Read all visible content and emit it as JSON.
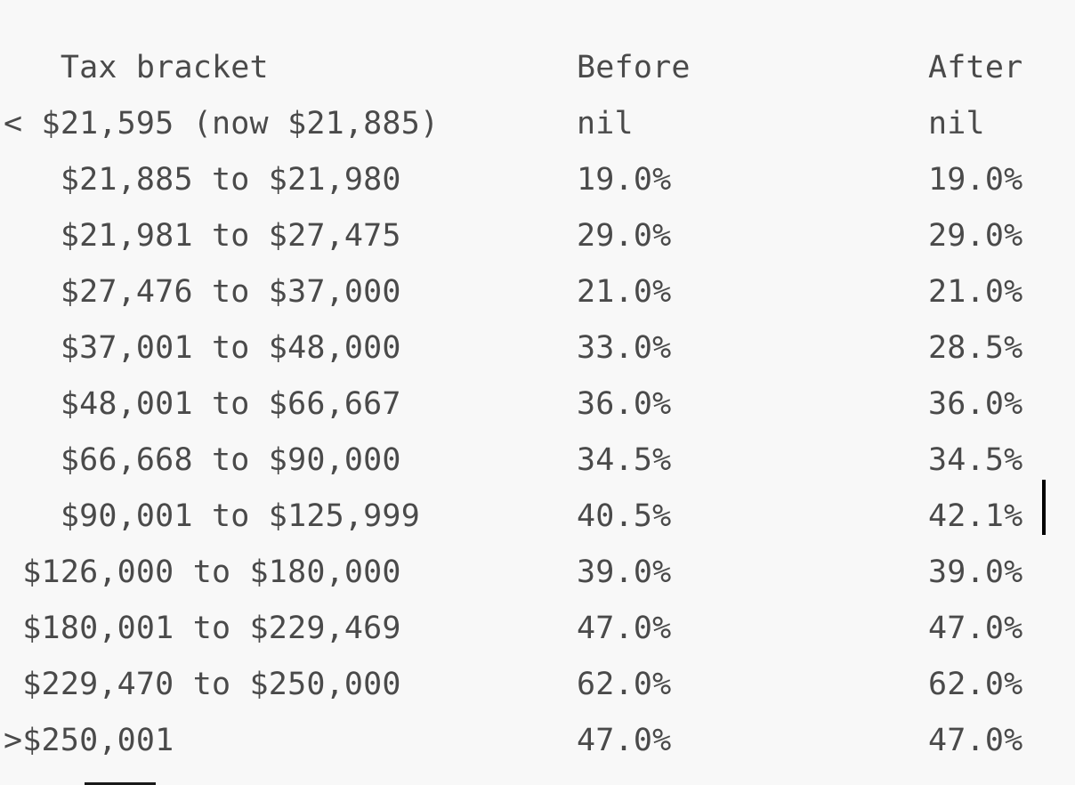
{
  "page": {
    "background_color": "#f8f8f8",
    "text_color": "#4a4a4a"
  },
  "table": {
    "header": {
      "bracket": "   Tax bracket",
      "before": "Before",
      "after": "After"
    },
    "rows": [
      {
        "bracket": "< $21,595 (now $21,885)",
        "before": "nil",
        "after": "nil"
      },
      {
        "bracket": "   $21,885 to $21,980",
        "before": "19.0%",
        "after": "19.0%"
      },
      {
        "bracket": "   $21,981 to $27,475",
        "before": "29.0%",
        "after": "29.0%"
      },
      {
        "bracket": "   $27,476 to $37,000",
        "before": "21.0%",
        "after": "21.0%"
      },
      {
        "bracket": "   $37,001 to $48,000",
        "before": "33.0%",
        "after": "28.5%"
      },
      {
        "bracket": "   $48,001 to $66,667",
        "before": "36.0%",
        "after": "36.0%"
      },
      {
        "bracket": "   $66,668 to $90,000",
        "before": "34.5%",
        "after": "34.5%"
      },
      {
        "bracket": "   $90,001 to $125,999",
        "before": "40.5%",
        "after": "42.1%"
      },
      {
        "bracket": " $126,000 to $180,000",
        "before": "39.0%",
        "after": "39.0%"
      },
      {
        "bracket": " $180,001 to $229,469",
        "before": "47.0%",
        "after": "47.0%"
      },
      {
        "bracket": " $229,470 to $250,000",
        "before": "62.0%",
        "after": "62.0%"
      },
      {
        "bracket": ">$250,001",
        "before": "47.0%",
        "after": "47.0%"
      }
    ]
  },
  "cursor": {
    "color": "#000000",
    "after_value": "42.1%"
  }
}
